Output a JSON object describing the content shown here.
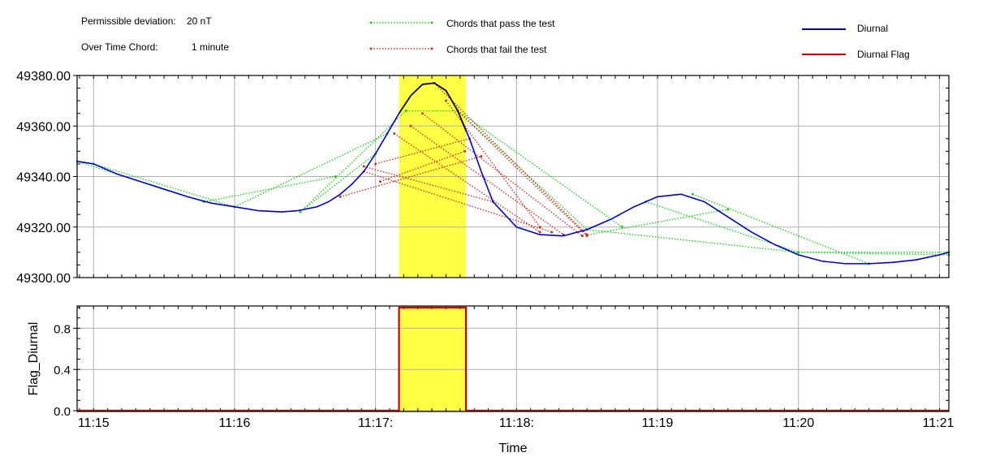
{
  "info": {
    "deviation_label": "Permissible deviation:",
    "deviation_value": "20 nT",
    "chord_label": "Over Time Chord:",
    "chord_value": "1 minute"
  },
  "legend": {
    "pass": "Chords that pass the test",
    "fail": "Chords that fail the test",
    "diurnal": "Diurnal",
    "flag": "Diurnal Flag"
  },
  "colors": {
    "diurnal": "#0000cc",
    "flag": "#cc0000",
    "pass": "#22cc22",
    "fail": "#cc3322",
    "highlight": "#ffff44",
    "grid": "#b0b0b0",
    "spike": "#000000"
  },
  "chart_data": {
    "type": "line",
    "x_ticks": [
      {
        "t": 0,
        "label": "11:15"
      },
      {
        "t": 60,
        "label": "11:16"
      },
      {
        "t": 120,
        "label": "11:17:"
      },
      {
        "t": 180,
        "label": "11:18:"
      },
      {
        "t": 240,
        "label": "11:19"
      },
      {
        "t": 300,
        "label": "11:20"
      },
      {
        "t": 360,
        "label": "11:21"
      }
    ],
    "xlabel": "Time",
    "xlim": [
      -7,
      364
    ],
    "flagged_span": [
      130,
      158.5
    ],
    "top": {
      "ylabel": "",
      "ylim": [
        49300,
        49380
      ],
      "yticks": [
        {
          "v": 49300,
          "label": "49300.00"
        },
        {
          "v": 49320,
          "label": "49320.00"
        },
        {
          "v": 49340,
          "label": "49340.00"
        },
        {
          "v": 49360,
          "label": "49360.00"
        },
        {
          "v": 49380,
          "label": "49380.00"
        }
      ],
      "diurnal": {
        "name": "Diurnal",
        "x": [
          -7,
          0,
          10,
          20,
          30,
          40,
          50,
          60,
          70,
          80,
          87,
          95,
          100,
          105,
          110,
          115,
          120,
          125,
          130,
          135,
          140,
          145,
          150,
          155,
          160,
          165,
          170,
          180,
          190,
          200,
          210,
          220,
          230,
          240,
          250,
          260,
          270,
          280,
          290,
          300,
          310,
          320,
          330,
          340,
          350,
          360,
          364
        ],
        "values": [
          49346,
          49345,
          49341,
          49338,
          49335,
          49332,
          49329.5,
          49328,
          49326.5,
          49326,
          49326.5,
          49328,
          49330,
          49333,
          49337,
          49342,
          49349,
          49357,
          49365,
          49372,
          49376.5,
          49377,
          49374,
          49366,
          49355,
          49342,
          49330,
          49320,
          49317,
          49316.5,
          49319,
          49323,
          49328,
          49332,
          49333,
          49330,
          49324,
          49318,
          49313,
          49309,
          49306.5,
          49305.5,
          49305.5,
          49306,
          49307,
          49309,
          49310
        ]
      },
      "spike": {
        "name": "",
        "x": [
          130,
          135,
          140,
          145,
          150,
          155,
          158.5
        ],
        "values": [
          49365,
          49372,
          49376.5,
          49377,
          49374,
          49366,
          49358
        ]
      },
      "chords_pass": [
        [
          [
            -7,
            49346
          ],
          [
            47,
            49330
          ]
        ],
        [
          [
            47,
            49330
          ],
          [
            103,
            49340
          ]
        ],
        [
          [
            0,
            49345
          ],
          [
            60,
            49328
          ]
        ],
        [
          [
            60,
            49328
          ],
          [
            125,
            49357
          ]
        ],
        [
          [
            88,
            49326
          ],
          [
            120,
            49349
          ]
        ],
        [
          [
            88,
            49326
          ],
          [
            133,
            49366
          ]
        ],
        [
          [
            133,
            49366
          ],
          [
            155,
            49366
          ]
        ],
        [
          [
            155,
            49366
          ],
          [
            210,
            49319
          ]
        ],
        [
          [
            155,
            49366
          ],
          [
            225,
            49320
          ]
        ],
        [
          [
            208,
            49316.5
          ],
          [
            270,
            49327
          ]
        ],
        [
          [
            210,
            49319
          ],
          [
            300,
            49310
          ]
        ],
        [
          [
            235,
            49330
          ],
          [
            300,
            49310
          ]
        ],
        [
          [
            255,
            49333
          ],
          [
            330,
            49305.5
          ]
        ],
        [
          [
            300,
            49310
          ],
          [
            364,
            49310
          ]
        ],
        [
          [
            300,
            49310
          ],
          [
            364,
            49309
          ]
        ]
      ],
      "chords_fail": [
        [
          [
            115,
            49344
          ],
          [
            170,
            49330
          ]
        ],
        [
          [
            115,
            49342
          ],
          [
            195,
            49318
          ]
        ],
        [
          [
            120,
            49345
          ],
          [
            160,
            49355
          ]
        ],
        [
          [
            122,
            49338
          ],
          [
            158,
            49350
          ]
        ],
        [
          [
            128,
            49357
          ],
          [
            190,
            49318
          ]
        ],
        [
          [
            135,
            49360
          ],
          [
            200,
            49317
          ]
        ],
        [
          [
            140,
            49365
          ],
          [
            208,
            49316.5
          ]
        ],
        [
          [
            145,
            49377
          ],
          [
            210,
            49317
          ]
        ],
        [
          [
            150,
            49370
          ],
          [
            190,
            49320
          ]
        ],
        [
          [
            155,
            49366
          ],
          [
            210,
            49316.5
          ]
        ],
        [
          [
            105,
            49332
          ],
          [
            165,
            49348
          ]
        ]
      ]
    },
    "bottom": {
      "ylabel": "Flag_Diurnal",
      "ylim": [
        0,
        1
      ],
      "yticks": [
        {
          "v": 0,
          "label": "0.0"
        },
        {
          "v": 0.4,
          "label": "0.4"
        },
        {
          "v": 0.8,
          "label": "0.8"
        }
      ],
      "flag": {
        "name": "Diurnal Flag",
        "x": [
          -7,
          130,
          130,
          158.5,
          158.5,
          364
        ],
        "values": [
          0,
          0,
          1,
          1,
          0,
          0
        ]
      }
    }
  }
}
